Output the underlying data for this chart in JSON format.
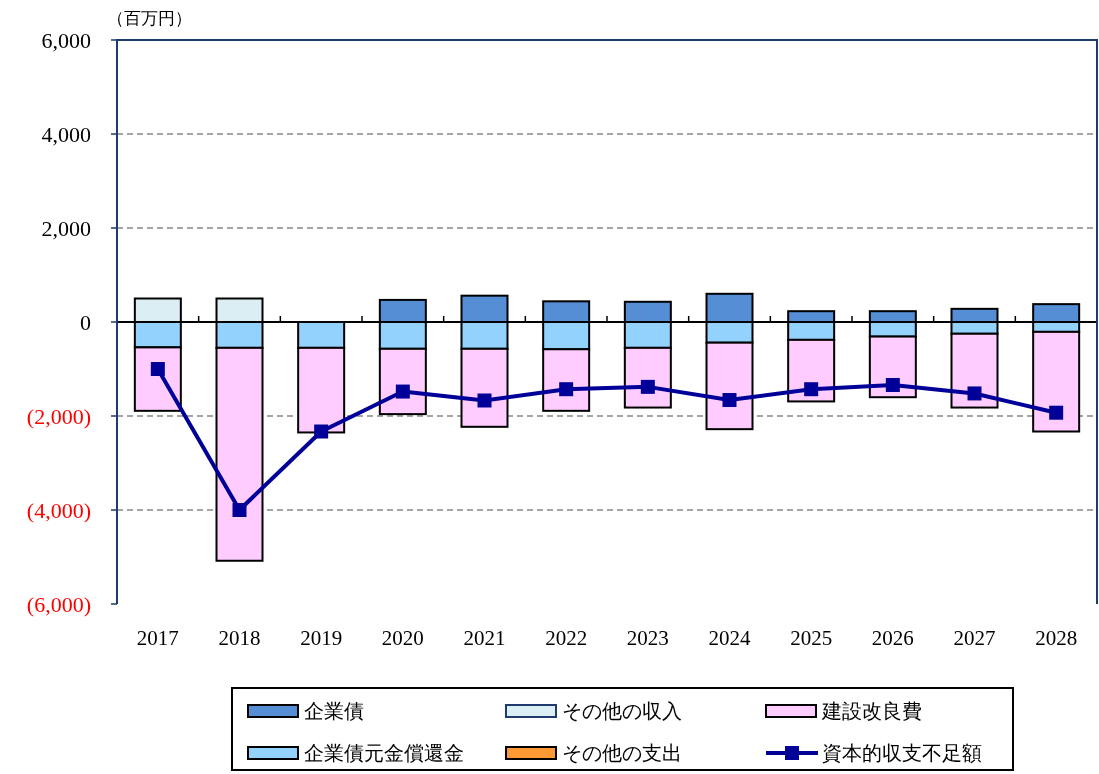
{
  "chart_data": {
    "type": "bar",
    "stacked": true,
    "ylabel": "（百万円）",
    "categories": [
      "2017",
      "2018",
      "2019",
      "2020",
      "2021",
      "2022",
      "2023",
      "2024",
      "2025",
      "2026",
      "2027",
      "2028"
    ],
    "series": [
      {
        "name": "企業債",
        "color": "#558ed5",
        "values": [
          0,
          0,
          0,
          470,
          560,
          440,
          430,
          600,
          230,
          230,
          280,
          380
        ]
      },
      {
        "name": "企業債元金償還金",
        "color": "#93d2fd",
        "values": [
          -540,
          -550,
          -550,
          -570,
          -570,
          -580,
          -550,
          -440,
          -380,
          -310,
          -250,
          -210
        ]
      },
      {
        "name": "その他の収入",
        "color": "#dbeef4",
        "values": [
          500,
          500,
          0,
          0,
          0,
          0,
          0,
          0,
          0,
          0,
          0,
          0
        ]
      },
      {
        "name": "その他の支出",
        "color": "#ff9933",
        "values": [
          0,
          0,
          0,
          0,
          0,
          0,
          0,
          0,
          0,
          0,
          0,
          0
        ]
      },
      {
        "name": "建設改良費",
        "color": "#ffccff",
        "values": [
          -1350,
          -4530,
          -1800,
          -1390,
          -1660,
          -1310,
          -1270,
          -1840,
          -1310,
          -1290,
          -1570,
          -2120
        ]
      },
      {
        "name": "資本的収支不足額",
        "type": "line",
        "color": "#000099",
        "values": [
          -1000,
          -4000,
          -2330,
          -1480,
          -1670,
          -1430,
          -1380,
          -1660,
          -1430,
          -1340,
          -1520,
          -1930
        ]
      }
    ],
    "ylim": [
      -6000,
      6000
    ],
    "yticks": [
      {
        "value": -6000,
        "label": "(6,000)"
      },
      {
        "value": -4000,
        "label": "(4,000)"
      },
      {
        "value": -2000,
        "label": "(2,000)"
      },
      0,
      {
        "value": 2000,
        "label": "2,000"
      },
      {
        "value": 4000,
        "label": "4,000"
      },
      {
        "value": 6000,
        "label": "6,000"
      }
    ],
    "grid": "y",
    "legend": "bottom",
    "marker": "square",
    "line_style": "solid"
  }
}
